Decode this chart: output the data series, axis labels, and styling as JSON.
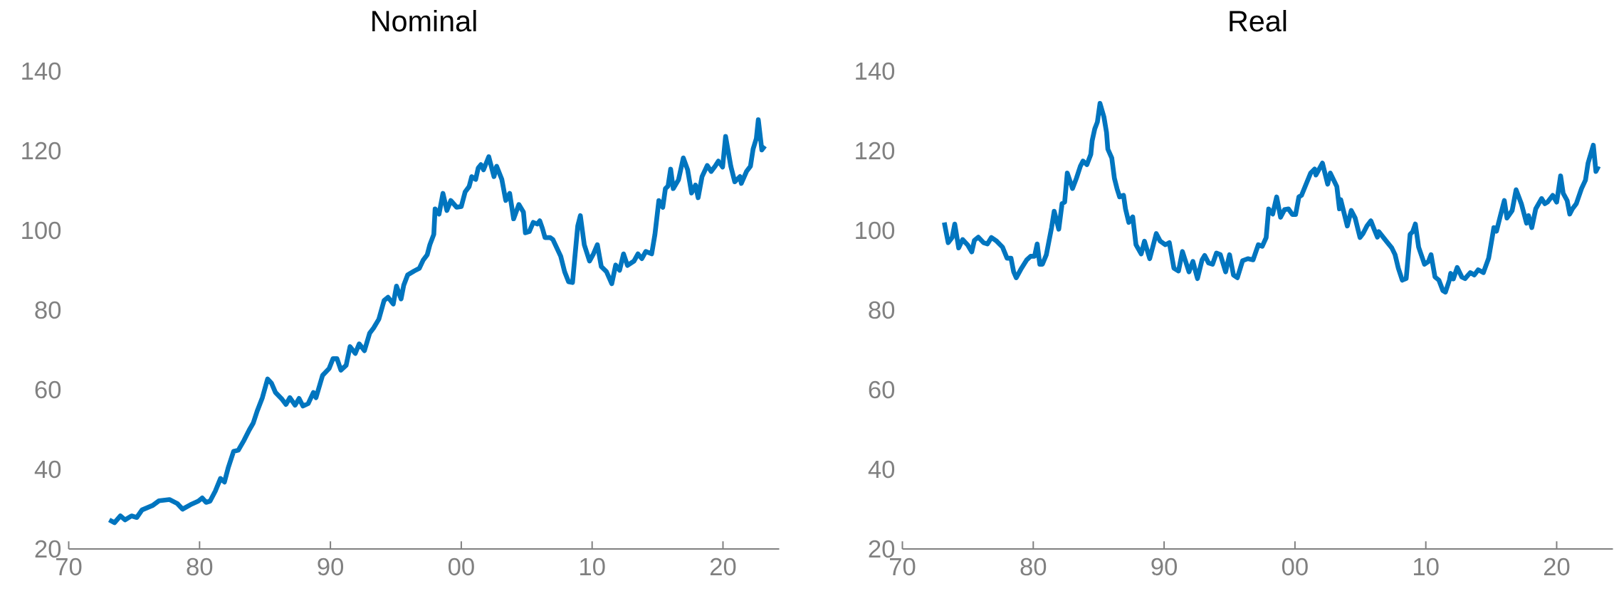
{
  "chart_data": [
    {
      "type": "line",
      "title": "Nominal",
      "color": "#0075bf",
      "xlim": [
        1970,
        2024.3
      ],
      "ylim": [
        20,
        140
      ],
      "xticks": [
        {
          "value": 1970,
          "label": "70"
        },
        {
          "value": 1980,
          "label": "80"
        },
        {
          "value": 1990,
          "label": "90"
        },
        {
          "value": 2000,
          "label": "00"
        },
        {
          "value": 2010,
          "label": "10"
        },
        {
          "value": 2020,
          "label": "20"
        }
      ],
      "yticks": [
        20,
        40,
        60,
        80,
        100,
        120,
        140
      ],
      "x": [
        1973.1,
        1973.5,
        1973.95,
        1974.3,
        1974.8,
        1975.2,
        1975.6,
        1976.4,
        1976.9,
        1977.7,
        1978.3,
        1978.7,
        1979.3,
        1979.9,
        1980.2,
        1980.5,
        1980.8,
        1981.2,
        1981.6,
        1981.9,
        1982.2,
        1982.6,
        1982.96,
        1983.4,
        1983.8,
        1984.1,
        1984.4,
        1984.8,
        1985.2,
        1985.5,
        1985.8,
        1986.3,
        1986.6,
        1986.9,
        1987.3,
        1987.6,
        1987.9,
        1988.3,
        1988.7,
        1988.9,
        1989.4,
        1989.9,
        1990.2,
        1990.5,
        1990.8,
        1991.2,
        1991.5,
        1991.9,
        1992.2,
        1992.6,
        1993.0,
        1993.3,
        1993.7,
        1994.1,
        1994.4,
        1994.8,
        1995.05,
        1995.4,
        1995.6,
        1995.9,
        1996.4,
        1996.8,
        1997.1,
        1997.4,
        1997.6,
        1997.9,
        1998.0,
        1998.3,
        1998.6,
        1998.9,
        1999.2,
        1999.65,
        2000.0,
        2000.3,
        2000.6,
        2000.8,
        2001.1,
        2001.3,
        2001.5,
        2001.7,
        2002.1,
        2002.5,
        2002.7,
        2003.1,
        2003.4,
        2003.7,
        2004.0,
        2004.4,
        2004.75,
        2004.9,
        2005.2,
        2005.5,
        2005.8,
        2006.0,
        2006.2,
        2006.4,
        2006.8,
        2007.0,
        2007.3,
        2007.6,
        2007.9,
        2008.2,
        2008.5,
        2008.9,
        2009.1,
        2009.4,
        2009.8,
        2010.1,
        2010.4,
        2010.7,
        2011.1,
        2011.5,
        2011.8,
        2012.1,
        2012.4,
        2012.7,
        2013.2,
        2013.5,
        2013.8,
        2014.1,
        2014.55,
        2014.8,
        2015.1,
        2015.4,
        2015.6,
        2015.8,
        2016.0,
        2016.2,
        2016.6,
        2016.97,
        2017.3,
        2017.6,
        2017.9,
        2018.1,
        2018.4,
        2018.8,
        2019.1,
        2019.4,
        2019.65,
        2019.97,
        2020.2,
        2020.6,
        2020.9,
        2021.3,
        2021.4,
        2021.8,
        2022.1,
        2022.3,
        2022.55,
        2022.7,
        2022.97,
        2023.2
      ],
      "values": [
        27.3,
        26.6,
        28.3,
        27.3,
        28.3,
        27.9,
        29.8,
        30.9,
        32.1,
        32.4,
        31.4,
        30.0,
        31.1,
        32.0,
        32.8,
        31.7,
        32.0,
        34.5,
        37.7,
        36.8,
        40.5,
        44.5,
        44.8,
        47.3,
        49.9,
        51.6,
        54.6,
        58.0,
        62.7,
        61.6,
        59.3,
        57.6,
        56.3,
        58.0,
        56.1,
        57.8,
        55.9,
        56.5,
        59.3,
        58.0,
        63.6,
        65.3,
        67.8,
        67.8,
        64.9,
        66.1,
        70.8,
        69.1,
        71.5,
        69.8,
        74.2,
        75.5,
        77.7,
        82.4,
        83.2,
        81.5,
        86.0,
        82.8,
        86.2,
        88.8,
        89.8,
        90.5,
        92.6,
        93.9,
        96.4,
        99.0,
        105.4,
        104.1,
        109.3,
        105.0,
        107.5,
        105.8,
        106.0,
        109.7,
        111.0,
        113.5,
        112.8,
        115.7,
        116.5,
        115.2,
        118.5,
        113.5,
        116.1,
        112.8,
        107.5,
        109.3,
        102.9,
        106.5,
        104.6,
        99.4,
        99.7,
        102.0,
        101.6,
        102.4,
        100.5,
        98.2,
        98.2,
        97.7,
        95.6,
        93.5,
        89.6,
        87.1,
        86.9,
        101.1,
        103.7,
        96.4,
        92.3,
        94.1,
        96.4,
        90.9,
        89.6,
        86.6,
        91.3,
        90.0,
        94.1,
        91.2,
        92.3,
        94.1,
        92.9,
        94.7,
        94.1,
        99.0,
        107.5,
        105.8,
        110.5,
        111.1,
        115.4,
        110.5,
        112.7,
        118.2,
        115.2,
        109.4,
        111.4,
        108.2,
        113.5,
        116.3,
        114.8,
        116.1,
        117.4,
        115.9,
        123.6,
        116.1,
        112.2,
        113.5,
        111.8,
        114.8,
        116.1,
        120.4,
        123.1,
        127.8,
        120.2,
        121.2
      ]
    },
    {
      "type": "line",
      "title": "Real",
      "color": "#0075bf",
      "xlim": [
        1970,
        2024.3
      ],
      "ylim": [
        20,
        140
      ],
      "xticks": [
        {
          "value": 1970,
          "label": "70"
        },
        {
          "value": 1980,
          "label": "80"
        },
        {
          "value": 1990,
          "label": "90"
        },
        {
          "value": 2000,
          "label": "00"
        },
        {
          "value": 2010,
          "label": "10"
        },
        {
          "value": 2020,
          "label": "20"
        }
      ],
      "yticks": [
        20,
        40,
        60,
        80,
        100,
        120,
        140
      ],
      "x": [
        1973.2,
        1973.5,
        1973.8,
        1974.0,
        1974.3,
        1974.6,
        1975.0,
        1975.3,
        1975.5,
        1975.8,
        1976.2,
        1976.5,
        1976.8,
        1977.2,
        1977.65,
        1978.0,
        1978.3,
        1978.5,
        1978.7,
        1979.1,
        1979.5,
        1979.8,
        1980.1,
        1980.3,
        1980.5,
        1980.7,
        1981.0,
        1981.4,
        1981.6,
        1981.95,
        1982.2,
        1982.4,
        1982.6,
        1983.0,
        1983.3,
        1983.6,
        1983.8,
        1984.1,
        1984.4,
        1984.5,
        1984.7,
        1984.9,
        1985.1,
        1985.4,
        1985.6,
        1985.7,
        1986.0,
        1986.2,
        1986.4,
        1986.6,
        1986.9,
        1987.05,
        1987.3,
        1987.6,
        1987.85,
        1988.25,
        1988.5,
        1988.9,
        1989.4,
        1989.7,
        1990.1,
        1990.4,
        1990.75,
        1991.1,
        1991.4,
        1991.9,
        1992.2,
        1992.55,
        1992.9,
        1993.1,
        1993.4,
        1993.7,
        1994.0,
        1994.3,
        1994.7,
        1995.0,
        1995.3,
        1995.6,
        1996.0,
        1996.4,
        1996.8,
        1997.2,
        1997.5,
        1997.8,
        1997.99,
        1998.3,
        1998.6,
        1998.9,
        1999.2,
        1999.5,
        1999.8,
        2000.05,
        2000.3,
        2000.5,
        2000.9,
        2001.2,
        2001.5,
        2001.6,
        2002.1,
        2002.5,
        2002.7,
        2003.2,
        2003.4,
        2003.5,
        2004.0,
        2004.3,
        2004.6,
        2004.97,
        2005.2,
        2005.5,
        2005.8,
        2006.0,
        2006.3,
        2006.4,
        2006.98,
        2007.4,
        2007.65,
        2007.9,
        2008.2,
        2008.5,
        2008.8,
        2009.0,
        2009.2,
        2009.45,
        2009.9,
        2010.2,
        2010.4,
        2010.7,
        2011.0,
        2011.3,
        2011.5,
        2011.8,
        2011.9,
        2012.1,
        2012.4,
        2012.75,
        2013.0,
        2013.4,
        2013.7,
        2014.0,
        2014.4,
        2014.8,
        2015.2,
        2015.4,
        2015.7,
        2016.0,
        2016.2,
        2016.6,
        2016.9,
        2017.3,
        2017.7,
        2017.85,
        2018.1,
        2018.4,
        2018.85,
        2019.1,
        2019.3,
        2019.7,
        2020.0,
        2020.3,
        2020.5,
        2020.8,
        2021.0,
        2021.2,
        2021.5,
        2021.9,
        2022.2,
        2022.4,
        2022.8,
        2023.0,
        2023.2
      ],
      "values": [
        102.0,
        96.9,
        98.2,
        101.6,
        95.6,
        97.7,
        96.3,
        94.6,
        97.5,
        98.3,
        96.9,
        96.6,
        98.2,
        97.3,
        95.8,
        93.0,
        93.0,
        89.6,
        88.1,
        90.5,
        92.6,
        93.5,
        93.5,
        96.6,
        91.5,
        91.5,
        93.9,
        100.7,
        104.8,
        100.3,
        106.7,
        107.1,
        114.4,
        110.5,
        113.1,
        116.1,
        117.4,
        116.5,
        119.1,
        122.5,
        125.5,
        127.2,
        131.9,
        128.5,
        124.6,
        120.4,
        118.2,
        113.1,
        110.5,
        108.4,
        108.8,
        105.4,
        102.0,
        103.4,
        96.4,
        94.1,
        97.3,
        92.9,
        99.2,
        97.3,
        96.4,
        96.9,
        90.5,
        89.8,
        94.7,
        89.6,
        92.2,
        87.9,
        92.6,
        93.7,
        91.8,
        91.5,
        94.3,
        93.9,
        89.6,
        93.9,
        88.8,
        88.1,
        92.4,
        92.9,
        92.6,
        96.4,
        96.0,
        98.2,
        105.4,
        104.1,
        108.4,
        103.3,
        105.2,
        105.4,
        104.0,
        104.0,
        108.4,
        108.8,
        112.0,
        114.4,
        115.4,
        113.9,
        116.9,
        111.6,
        114.4,
        111.0,
        105.4,
        107.7,
        101.1,
        105.0,
        103.1,
        98.2,
        99.2,
        101.1,
        102.4,
        100.7,
        98.3,
        99.7,
        97.3,
        95.6,
        93.9,
        90.5,
        87.5,
        87.9,
        99.0,
        99.7,
        101.6,
        95.8,
        91.5,
        92.2,
        93.9,
        88.3,
        87.5,
        84.9,
        84.5,
        87.5,
        89.2,
        87.8,
        90.7,
        88.3,
        87.9,
        89.4,
        88.8,
        90.1,
        89.4,
        93.0,
        100.7,
        99.8,
        103.7,
        107.5,
        103.1,
        105.0,
        110.2,
        106.7,
        101.8,
        103.7,
        100.7,
        105.4,
        108.0,
        106.7,
        107.1,
        108.8,
        107.1,
        113.7,
        109.3,
        107.5,
        104.1,
        105.4,
        106.7,
        110.5,
        112.6,
        116.9,
        121.4,
        114.8,
        116.1
      ]
    }
  ]
}
